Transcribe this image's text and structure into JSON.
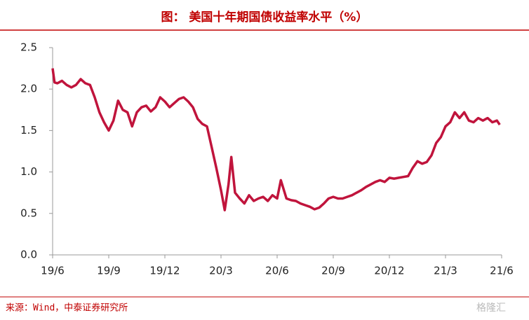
{
  "chart_data": {
    "type": "line",
    "title": "图：  美国十年期国债收益率水平（%）",
    "source": "来源：Wind，中泰证券研究所",
    "watermark": "格隆汇",
    "xlim": [
      0,
      24
    ],
    "xticks": [
      {
        "value": 0,
        "label": "19/6"
      },
      {
        "value": 3,
        "label": "19/9"
      },
      {
        "value": 6,
        "label": "19/12"
      },
      {
        "value": 9,
        "label": "20/3"
      },
      {
        "value": 12,
        "label": "20/6"
      },
      {
        "value": 15,
        "label": "20/9"
      },
      {
        "value": 18,
        "label": "20/12"
      },
      {
        "value": 21,
        "label": "21/3"
      },
      {
        "value": 24,
        "label": "21/6"
      }
    ],
    "ylim": [
      0,
      2.5
    ],
    "yticks": [
      {
        "value": 0,
        "label": "0.0"
      },
      {
        "value": 0.5,
        "label": "0.5"
      },
      {
        "value": 1,
        "label": "1.0"
      },
      {
        "value": 1.5,
        "label": "1.5"
      },
      {
        "value": 2,
        "label": "2.0"
      },
      {
        "value": 2.5,
        "label": "2.5"
      }
    ],
    "series": [
      {
        "color": "#c0143c",
        "x": [
          0,
          0.1,
          0.25,
          0.5,
          0.75,
          1,
          1.25,
          1.5,
          1.75,
          2,
          2.25,
          2.5,
          2.75,
          3,
          3.25,
          3.5,
          3.75,
          4,
          4.25,
          4.5,
          4.75,
          5,
          5.25,
          5.5,
          5.75,
          6,
          6.25,
          6.5,
          6.75,
          7,
          7.25,
          7.5,
          7.75,
          8,
          8.25,
          8.5,
          8.75,
          9,
          9.2,
          9.4,
          9.55,
          9.75,
          10,
          10.25,
          10.5,
          10.75,
          11,
          11.25,
          11.5,
          11.75,
          12,
          12.2,
          12.5,
          12.75,
          13,
          13.25,
          13.5,
          13.75,
          14,
          14.25,
          14.5,
          14.75,
          15,
          15.25,
          15.5,
          15.75,
          16,
          16.25,
          16.5,
          16.75,
          17,
          17.25,
          17.5,
          17.75,
          18,
          18.25,
          18.5,
          18.75,
          19,
          19.25,
          19.5,
          19.75,
          20,
          20.25,
          20.5,
          20.75,
          21,
          21.25,
          21.5,
          21.75,
          22,
          22.25,
          22.5,
          22.75,
          23,
          23.25,
          23.5,
          23.75,
          23.9
        ],
        "values": [
          2.25,
          2.08,
          2.07,
          2.1,
          2.05,
          2.02,
          2.05,
          2.12,
          2.07,
          2.05,
          1.9,
          1.72,
          1.6,
          1.5,
          1.62,
          1.86,
          1.75,
          1.72,
          1.55,
          1.72,
          1.78,
          1.8,
          1.73,
          1.78,
          1.9,
          1.85,
          1.78,
          1.83,
          1.88,
          1.9,
          1.85,
          1.78,
          1.64,
          1.58,
          1.55,
          1.3,
          1.05,
          0.78,
          0.54,
          0.85,
          1.18,
          0.75,
          0.68,
          0.62,
          0.72,
          0.65,
          0.68,
          0.7,
          0.65,
          0.72,
          0.68,
          0.9,
          0.68,
          0.66,
          0.65,
          0.62,
          0.6,
          0.58,
          0.55,
          0.57,
          0.62,
          0.68,
          0.7,
          0.68,
          0.68,
          0.7,
          0.72,
          0.75,
          0.78,
          0.82,
          0.85,
          0.88,
          0.9,
          0.88,
          0.93,
          0.92,
          0.93,
          0.94,
          0.95,
          1.05,
          1.13,
          1.1,
          1.12,
          1.2,
          1.35,
          1.42,
          1.55,
          1.6,
          1.72,
          1.65,
          1.72,
          1.62,
          1.6,
          1.65,
          1.62,
          1.65,
          1.6,
          1.62,
          1.57
        ]
      }
    ]
  }
}
